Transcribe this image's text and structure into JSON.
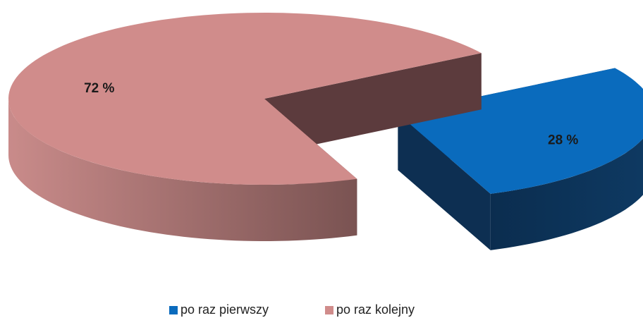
{
  "chart_data": {
    "type": "pie",
    "categories": [
      "po raz pierwszy",
      "po raz kolejny"
    ],
    "values": [
      28,
      72
    ],
    "value_labels": [
      "28 %",
      "72 %"
    ],
    "colors": [
      "#0a6bbd",
      "#d08c8b"
    ],
    "legend": "bottom"
  }
}
